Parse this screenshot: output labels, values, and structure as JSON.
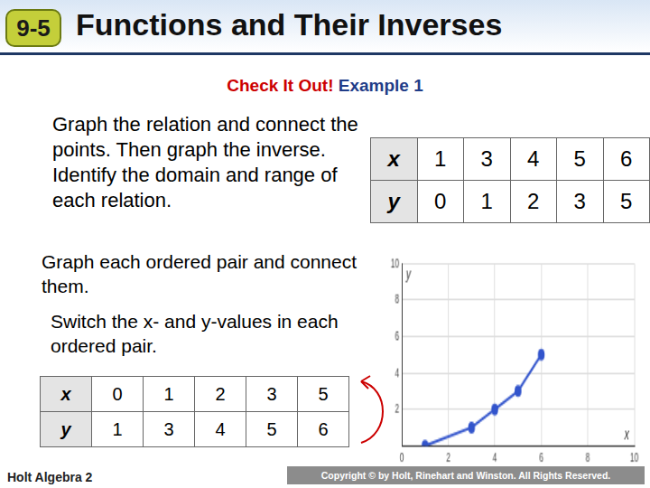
{
  "header": {
    "badge": "9-5",
    "title": "Functions and Their Inverses"
  },
  "example": {
    "label": "Check It Out!",
    "title": "Example 1"
  },
  "prompt": "Graph the relation and connect the points. Then graph the inverse. Identify the domain and range of each relation.",
  "steps": [
    "Graph each ordered pair and connect them.",
    "Switch the x- and y-values in each ordered pair."
  ],
  "relation_table": {
    "rows": [
      {
        "header": "x",
        "cells": [
          1,
          3,
          4,
          5,
          6
        ]
      },
      {
        "header": "y",
        "cells": [
          0,
          1,
          2,
          3,
          5
        ]
      }
    ]
  },
  "inverse_table": {
    "rows": [
      {
        "header": "x",
        "cells": [
          0,
          1,
          2,
          3,
          5
        ]
      },
      {
        "header": "y",
        "cells": [
          1,
          3,
          4,
          5,
          6
        ]
      }
    ]
  },
  "chart_data": {
    "type": "line",
    "x": [
      1,
      3,
      4,
      5,
      6
    ],
    "values": [
      0,
      1,
      2,
      3,
      5
    ],
    "color": "#3355cc",
    "marker": "circle",
    "xlabel": "x",
    "ylabel": "y",
    "xlim": [
      0,
      10
    ],
    "ylim": [
      0,
      10
    ],
    "xticks": [
      0,
      2,
      4,
      6,
      8,
      10
    ],
    "yticks": [
      2,
      4,
      6,
      8,
      10
    ],
    "grid": true
  },
  "footer": {
    "left": "Holt Algebra 2",
    "right": "Copyright © by Holt, Rinehart and Winston. All Rights Reserved."
  }
}
